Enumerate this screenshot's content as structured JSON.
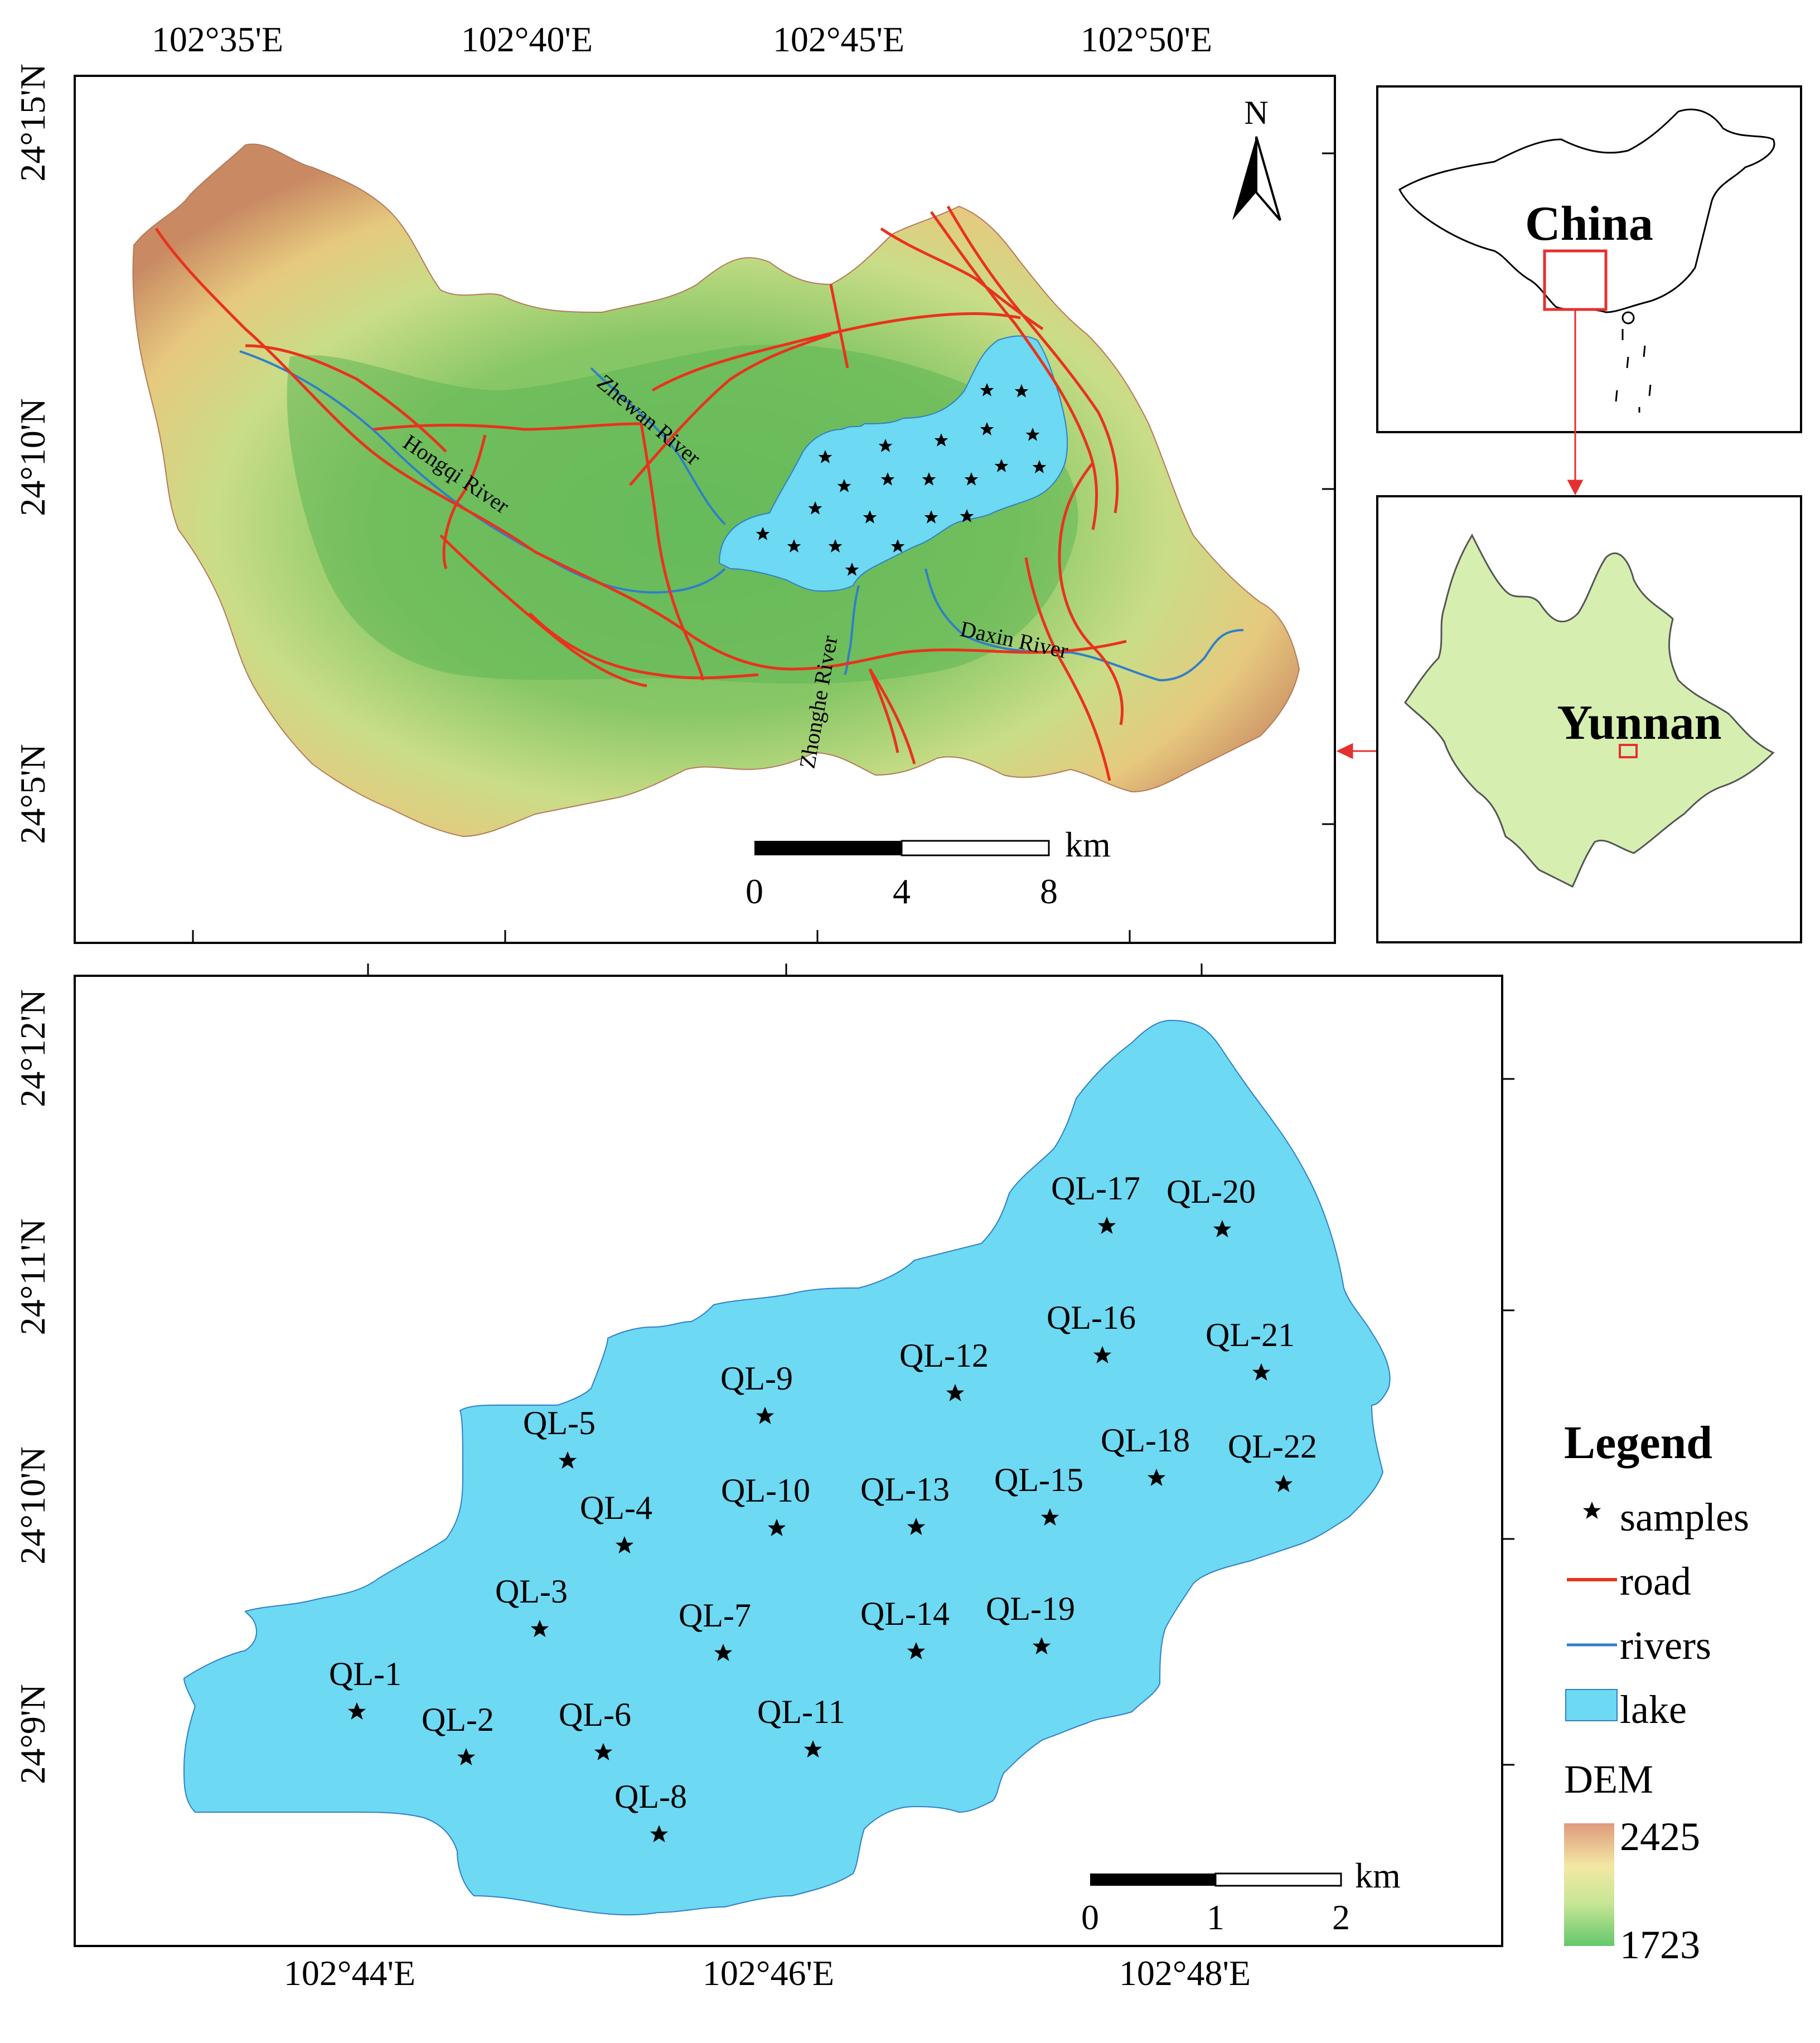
{
  "top_map": {
    "lon_labels": [
      "102°35'E",
      "102°40'E",
      "102°45'E",
      "102°50'E"
    ],
    "lat_labels": [
      "24°15'N",
      "24°10'N",
      "24°5'N"
    ],
    "north_label": "N",
    "rivers": [
      "Hongqi River",
      "Zhewan River",
      "Zhonghe River",
      "Daxin River"
    ],
    "scalebar": {
      "ticks": [
        "0",
        "4",
        "8"
      ],
      "unit": "km"
    }
  },
  "inset_china": {
    "label": "China"
  },
  "inset_yunnan": {
    "label": "Yunnan"
  },
  "bottom_map": {
    "lon_labels": [
      "102°44'E",
      "102°46'E",
      "102°48'E"
    ],
    "lat_labels": [
      "24°12'N",
      "24°11'N",
      "24°10'N",
      "24°9'N"
    ],
    "scalebar": {
      "ticks": [
        "0",
        "1",
        "2"
      ],
      "unit": "km"
    },
    "samples": [
      "QL-1",
      "QL-2",
      "QL-3",
      "QL-4",
      "QL-5",
      "QL-6",
      "QL-7",
      "QL-8",
      "QL-9",
      "QL-10",
      "QL-11",
      "QL-12",
      "QL-13",
      "QL-14",
      "QL-15",
      "QL-16",
      "QL-17",
      "QL-18",
      "QL-19",
      "QL-20",
      "QL-21",
      "QL-22"
    ]
  },
  "legend": {
    "title": "Legend",
    "items": [
      {
        "label": "samples",
        "symbol": "star-icon"
      },
      {
        "label": "road",
        "color": "#e8331c"
      },
      {
        "label": "rivers",
        "color": "#2f7fc9"
      },
      {
        "label": "lake",
        "color": "#6dd9f2"
      }
    ],
    "dem_title": "DEM",
    "dem_max": "2425",
    "dem_min": "1723",
    "dem_colors": [
      "#e09a7c",
      "#f2e8a4",
      "#c8e695",
      "#64c86c"
    ]
  },
  "colors": {
    "lake": "#6dd9f2",
    "road": "#e8331c",
    "river": "#2f7fc9",
    "yunnan_fill": "#d6efb0",
    "locator_box": "#e53030"
  }
}
